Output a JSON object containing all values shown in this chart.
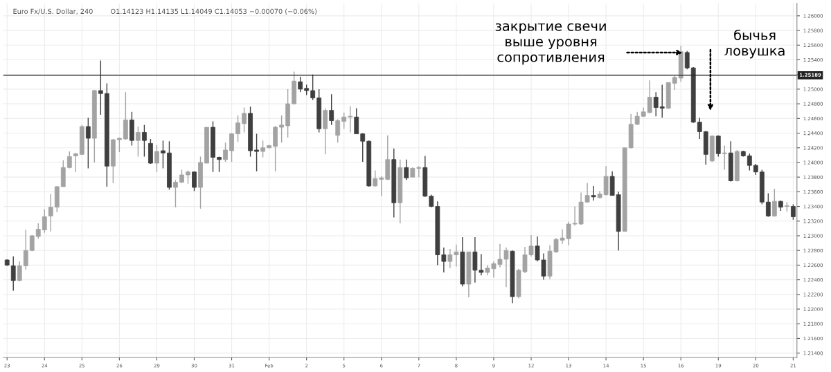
{
  "chart_data": {
    "type": "candlestick",
    "title": "Euro Fx/U.S. Dollar, 240",
    "subtitle": "O1.14123 H1.14135 L1.14049 C1.14053 −0.00070 (−0.06%)",
    "categories": [
      "23",
      null,
      null,
      null,
      null,
      null,
      "24",
      null,
      null,
      null,
      null,
      null,
      "25",
      null,
      null,
      null,
      null,
      null,
      "26",
      null,
      null,
      null,
      null,
      null,
      "29",
      null,
      null,
      null,
      null,
      null,
      "30",
      null,
      null,
      null,
      null,
      null,
      "31",
      null,
      null,
      null,
      null,
      null,
      "Feb",
      null,
      null,
      null,
      null,
      null,
      "2",
      null,
      null,
      null,
      null,
      null,
      "5",
      null,
      null,
      null,
      null,
      null,
      "6",
      null,
      null,
      null,
      null,
      null,
      "7",
      null,
      null,
      null,
      null,
      null,
      "8",
      null,
      null,
      null,
      null,
      null,
      "9",
      null,
      null,
      null,
      null,
      null,
      "12",
      null,
      null,
      null,
      null,
      null,
      "13",
      null,
      null,
      null,
      null,
      null,
      "14",
      null,
      null,
      null,
      null,
      null,
      "15",
      null,
      null,
      null,
      null,
      null,
      "16",
      null,
      null,
      null,
      null,
      null,
      "19",
      null,
      null,
      null,
      null,
      null,
      "20",
      null,
      null,
      null,
      null,
      null,
      "21"
    ],
    "ohlc": [
      [
        1.2267,
        1.2268,
        1.2259,
        1.226
      ],
      [
        1.2259,
        1.2272,
        1.2225,
        1.2239
      ],
      [
        1.2239,
        1.2265,
        1.2238,
        1.2259
      ],
      [
        1.2259,
        1.2308,
        1.2254,
        1.228
      ],
      [
        1.228,
        1.2301,
        1.2279,
        1.23
      ],
      [
        1.2299,
        1.2317,
        1.2296,
        1.2309
      ],
      [
        1.2308,
        1.2336,
        1.2304,
        1.2326
      ],
      [
        1.2327,
        1.2357,
        1.2306,
        1.2339
      ],
      [
        1.2339,
        1.2368,
        1.2332,
        1.2367
      ],
      [
        1.2367,
        1.2403,
        1.2367,
        1.2393
      ],
      [
        1.2393,
        1.2415,
        1.2392,
        1.2408
      ],
      [
        1.2409,
        1.2413,
        1.2387,
        1.2412
      ],
      [
        1.2411,
        1.2451,
        1.241,
        1.2449
      ],
      [
        1.2449,
        1.2461,
        1.2392,
        1.2433
      ],
      [
        1.2433,
        1.2499,
        1.24,
        1.2498
      ],
      [
        1.2498,
        1.2539,
        1.2465,
        1.2494
      ],
      [
        1.2494,
        1.2508,
        1.2367,
        1.2395
      ],
      [
        1.2395,
        1.2432,
        1.2372,
        1.2431
      ],
      [
        1.2431,
        1.2434,
        1.2414,
        1.2433
      ],
      [
        1.2432,
        1.2496,
        1.2431,
        1.2458
      ],
      [
        1.2458,
        1.2469,
        1.2423,
        1.243
      ],
      [
        1.243,
        1.2449,
        1.2408,
        1.2441
      ],
      [
        1.2441,
        1.2451,
        1.2408,
        1.243
      ],
      [
        1.2426,
        1.2432,
        1.2398,
        1.2399
      ],
      [
        1.2399,
        1.2424,
        1.2387,
        1.2415
      ],
      [
        1.2416,
        1.243,
        1.2392,
        1.2413
      ],
      [
        1.2413,
        1.2429,
        1.2363,
        1.2366
      ],
      [
        1.2366,
        1.2376,
        1.2339,
        1.2373
      ],
      [
        1.2373,
        1.239,
        1.2372,
        1.2383
      ],
      [
        1.2383,
        1.2389,
        1.2371,
        1.2387
      ],
      [
        1.2387,
        1.2388,
        1.2361,
        1.2366
      ],
      [
        1.2366,
        1.2408,
        1.2337,
        1.24
      ],
      [
        1.2399,
        1.2448,
        1.2399,
        1.2448
      ],
      [
        1.2448,
        1.2456,
        1.2387,
        1.2407
      ],
      [
        1.2407,
        1.2408,
        1.2387,
        1.2404
      ],
      [
        1.2404,
        1.2427,
        1.2401,
        1.2417
      ],
      [
        1.2416,
        1.244,
        1.2401,
        1.2439
      ],
      [
        1.2439,
        1.2464,
        1.2428,
        1.2454
      ],
      [
        1.2453,
        1.2475,
        1.2441,
        1.2467
      ],
      [
        1.2467,
        1.2476,
        1.2408,
        1.2416
      ],
      [
        1.2417,
        1.2439,
        1.2388,
        1.2415
      ],
      [
        1.2415,
        1.243,
        1.2407,
        1.242
      ],
      [
        1.242,
        1.2424,
        1.2419,
        1.2423
      ],
      [
        1.2422,
        1.245,
        1.2388,
        1.2448
      ],
      [
        1.2448,
        1.2464,
        1.2427,
        1.2451
      ],
      [
        1.245,
        1.25,
        1.2434,
        1.248
      ],
      [
        1.248,
        1.2524,
        1.2479,
        1.2511
      ],
      [
        1.251,
        1.2517,
        1.2496,
        1.25
      ],
      [
        1.2501,
        1.2506,
        1.2492,
        1.2498
      ],
      [
        1.2498,
        1.252,
        1.2485,
        1.2488
      ],
      [
        1.2488,
        1.25,
        1.2441,
        1.2446
      ],
      [
        1.2446,
        1.2474,
        1.2411,
        1.2471
      ],
      [
        1.2471,
        1.2493,
        1.2451,
        1.2457
      ],
      [
        1.2437,
        1.2459,
        1.2427,
        1.2457
      ],
      [
        1.2456,
        1.2468,
        1.2446,
        1.2462
      ],
      [
        1.2462,
        1.2477,
        1.2441,
        1.2463
      ],
      [
        1.2462,
        1.2474,
        1.2439,
        1.2439
      ],
      [
        1.2439,
        1.244,
        1.2401,
        1.2429
      ],
      [
        1.2429,
        1.243,
        1.2367,
        1.2368
      ],
      [
        1.2368,
        1.2389,
        1.2367,
        1.2378
      ],
      [
        1.2377,
        1.2381,
        1.2354,
        1.2379
      ],
      [
        1.2377,
        1.2437,
        1.2376,
        1.2404
      ],
      [
        1.2404,
        1.2419,
        1.2325,
        1.2345
      ],
      [
        1.2345,
        1.2404,
        1.2317,
        1.2393
      ],
      [
        1.2393,
        1.2404,
        1.2376,
        1.2379
      ],
      [
        1.238,
        1.2393,
        1.238,
        1.2392
      ],
      [
        1.2392,
        1.2395,
        1.238,
        1.2393
      ],
      [
        1.2393,
        1.2409,
        1.2353,
        1.2354
      ],
      [
        1.2354,
        1.2356,
        1.2339,
        1.234
      ],
      [
        1.234,
        1.2347,
        1.226,
        1.2274
      ],
      [
        1.2274,
        1.2284,
        1.225,
        1.2265
      ],
      [
        1.2265,
        1.2282,
        1.2256,
        1.2274
      ],
      [
        1.2274,
        1.2288,
        1.2258,
        1.2278
      ],
      [
        1.2278,
        1.2298,
        1.2231,
        1.2234
      ],
      [
        1.2234,
        1.2278,
        1.2216,
        1.2278
      ],
      [
        1.2278,
        1.2298,
        1.2236,
        1.2253
      ],
      [
        1.2253,
        1.2275,
        1.2246,
        1.225
      ],
      [
        1.225,
        1.226,
        1.2246,
        1.2256
      ],
      [
        1.2255,
        1.2265,
        1.2243,
        1.2262
      ],
      [
        1.2261,
        1.2289,
        1.2257,
        1.2268
      ],
      [
        1.2268,
        1.2284,
        1.223,
        1.228
      ],
      [
        1.2279,
        1.228,
        1.2208,
        1.2217
      ],
      [
        1.2217,
        1.2255,
        1.2215,
        1.2253
      ],
      [
        1.2251,
        1.2285,
        1.2249,
        1.2274
      ],
      [
        1.2274,
        1.2301,
        1.2272,
        1.2286
      ],
      [
        1.2286,
        1.2299,
        1.2265,
        1.2267
      ],
      [
        1.2267,
        1.2276,
        1.224,
        1.2245
      ],
      [
        1.2245,
        1.2287,
        1.2241,
        1.2279
      ],
      [
        1.2278,
        1.2297,
        1.2277,
        1.2295
      ],
      [
        1.2294,
        1.2309,
        1.2289,
        1.2297
      ],
      [
        1.2296,
        1.2319,
        1.2287,
        1.2316
      ],
      [
        1.2316,
        1.234,
        1.2314,
        1.2317
      ],
      [
        1.2316,
        1.2359,
        1.2315,
        1.2346
      ],
      [
        1.2346,
        1.2372,
        1.2345,
        1.2355
      ],
      [
        1.2355,
        1.2368,
        1.2348,
        1.2353
      ],
      [
        1.2352,
        1.2361,
        1.2351,
        1.2357
      ],
      [
        1.2356,
        1.2395,
        1.2355,
        1.2381
      ],
      [
        1.2381,
        1.2388,
        1.2355,
        1.2355
      ],
      [
        1.2356,
        1.236,
        1.228,
        1.2306
      ],
      [
        1.2306,
        1.242,
        1.2306,
        1.242
      ],
      [
        1.242,
        1.2466,
        1.2419,
        1.2452
      ],
      [
        1.2452,
        1.2469,
        1.2451,
        1.2463
      ],
      [
        1.2463,
        1.2475,
        1.2462,
        1.2469
      ],
      [
        1.2468,
        1.2512,
        1.2467,
        1.2489
      ],
      [
        1.2489,
        1.2496,
        1.2463,
        1.2475
      ],
      [
        1.2476,
        1.2506,
        1.2461,
        1.2474
      ],
      [
        1.2474,
        1.2509,
        1.2473,
        1.2509
      ],
      [
        1.2508,
        1.2518,
        1.2499,
        1.2516
      ],
      [
        1.2515,
        1.2559,
        1.251,
        1.2551
      ],
      [
        1.255,
        1.2552,
        1.2527,
        1.2529
      ],
      [
        1.2529,
        1.253,
        1.2454,
        1.2455
      ],
      [
        1.2455,
        1.2461,
        1.2432,
        1.2442
      ],
      [
        1.2442,
        1.2443,
        1.2397,
        1.2411
      ],
      [
        1.2402,
        1.2437,
        1.2401,
        1.2436
      ],
      [
        1.2436,
        1.2437,
        1.2408,
        1.2412
      ],
      [
        1.2412,
        1.2423,
        1.239,
        1.2413
      ],
      [
        1.2413,
        1.2429,
        1.2374,
        1.2375
      ],
      [
        1.2375,
        1.2417,
        1.2374,
        1.2415
      ],
      [
        1.2415,
        1.2416,
        1.2408,
        1.2409
      ],
      [
        1.2409,
        1.2412,
        1.2389,
        1.2396
      ],
      [
        1.2396,
        1.2398,
        1.2383,
        1.2387
      ],
      [
        1.2387,
        1.239,
        1.2343,
        1.2346
      ],
      [
        1.2346,
        1.2358,
        1.2326,
        1.2327
      ],
      [
        1.2327,
        1.2364,
        1.2326,
        1.2347
      ],
      [
        1.2347,
        1.2348,
        1.2334,
        1.2339
      ],
      [
        1.234,
        1.2346,
        1.2333,
        1.2341
      ],
      [
        1.234,
        1.2343,
        1.2322,
        1.2326
      ]
    ],
    "colors": [
      "#3f3f3f",
      "#3f3f3f",
      "#a3a3a3",
      "#a3a3a3",
      "#a3a3a3",
      "#a3a3a3",
      "#a3a3a3",
      "#a3a3a3",
      "#a3a3a3",
      "#a3a3a3",
      "#a3a3a3",
      "#a3a3a3",
      "#a3a3a3",
      "#3f3f3f",
      "#a3a3a3",
      "#3f3f3f",
      "#3f3f3f",
      "#a3a3a3",
      "#a3a3a3",
      "#a3a3a3",
      "#3f3f3f",
      "#a3a3a3",
      "#3f3f3f",
      "#3f3f3f",
      "#a3a3a3",
      "#3f3f3f",
      "#3f3f3f",
      "#a3a3a3",
      "#a3a3a3",
      "#a3a3a3",
      "#3f3f3f",
      "#a3a3a3",
      "#a3a3a3",
      "#3f3f3f",
      "#3f3f3f",
      "#a3a3a3",
      "#a3a3a3",
      "#a3a3a3",
      "#a3a3a3",
      "#3f3f3f",
      "#3f3f3f",
      "#a3a3a3",
      "#a3a3a3",
      "#a3a3a3",
      "#a3a3a3",
      "#a3a3a3",
      "#a3a3a3",
      "#3f3f3f",
      "#3f3f3f",
      "#3f3f3f",
      "#3f3f3f",
      "#a3a3a3",
      "#3f3f3f",
      "#a3a3a3",
      "#a3a3a3",
      "#a3a3a3",
      "#3f3f3f",
      "#3f3f3f",
      "#3f3f3f",
      "#a3a3a3",
      "#a3a3a3",
      "#a3a3a3",
      "#3f3f3f",
      "#a3a3a3",
      "#3f3f3f",
      "#a3a3a3",
      "#a3a3a3",
      "#3f3f3f",
      "#3f3f3f",
      "#3f3f3f",
      "#3f3f3f",
      "#a3a3a3",
      "#a3a3a3",
      "#3f3f3f",
      "#a3a3a3",
      "#3f3f3f",
      "#3f3f3f",
      "#a3a3a3",
      "#a3a3a3",
      "#a3a3a3",
      "#a3a3a3",
      "#3f3f3f",
      "#a3a3a3",
      "#a3a3a3",
      "#a3a3a3",
      "#3f3f3f",
      "#3f3f3f",
      "#a3a3a3",
      "#a3a3a3",
      "#a3a3a3",
      "#a3a3a3",
      "#a3a3a3",
      "#a3a3a3",
      "#a3a3a3",
      "#3f3f3f",
      "#a3a3a3",
      "#a3a3a3",
      "#3f3f3f",
      "#3f3f3f",
      "#a3a3a3",
      "#a3a3a3",
      "#a3a3a3",
      "#a3a3a3",
      "#a3a3a3",
      "#3f3f3f",
      "#3f3f3f",
      "#a3a3a3",
      "#a3a3a3",
      "#a3a3a3",
      "#3f3f3f",
      "#3f3f3f",
      "#3f3f3f",
      "#3f3f3f",
      "#a3a3a3",
      "#3f3f3f",
      "#a3a3a3",
      "#3f3f3f",
      "#a3a3a3",
      "#3f3f3f",
      "#3f3f3f",
      "#3f3f3f",
      "#3f3f3f",
      "#3f3f3f",
      "#a3a3a3",
      "#3f3f3f",
      "#a3a3a3",
      "#3f3f3f"
    ],
    "ylim": [
      1.2134,
      1.2617
    ],
    "yticks": [
      {
        "value": 1.214,
        "label": "1.21400"
      },
      {
        "value": 1.216,
        "label": "1.21600"
      },
      {
        "value": 1.218,
        "label": "1.21800"
      },
      {
        "value": 1.22,
        "label": "1.22000"
      },
      {
        "value": 1.222,
        "label": "1.22200"
      },
      {
        "value": 1.224,
        "label": "1.22400"
      },
      {
        "value": 1.226,
        "label": "1.22600"
      },
      {
        "value": 1.228,
        "label": "1.22800"
      },
      {
        "value": 1.23,
        "label": "1.23000"
      },
      {
        "value": 1.232,
        "label": "1.23200"
      },
      {
        "value": 1.234,
        "label": "1.23400"
      },
      {
        "value": 1.236,
        "label": "1.23600"
      },
      {
        "value": 1.238,
        "label": "1.23800"
      },
      {
        "value": 1.24,
        "label": "1.24000"
      },
      {
        "value": 1.242,
        "label": "1.24200"
      },
      {
        "value": 1.244,
        "label": "1.24400"
      },
      {
        "value": 1.246,
        "label": "1.24600"
      },
      {
        "value": 1.248,
        "label": "1.24800"
      },
      {
        "value": 1.25,
        "label": "1.25000"
      },
      {
        "value": 1.252,
        "label": null
      },
      {
        "value": 1.254,
        "label": "1.25400"
      },
      {
        "value": 1.256,
        "label": "1.25600"
      },
      {
        "value": 1.258,
        "label": "1.25800"
      },
      {
        "value": 1.26,
        "label": "1.26000"
      }
    ],
    "grid": true,
    "ref_lines": [
      {
        "axis": "y",
        "value": 1.25189,
        "label": "1.25189",
        "color": "#222222",
        "line_style": "solid"
      }
    ],
    "annotations": [
      "закрытие свечи\nвыше уровня\nсопротивления",
      "бычья\nловушка"
    ]
  }
}
